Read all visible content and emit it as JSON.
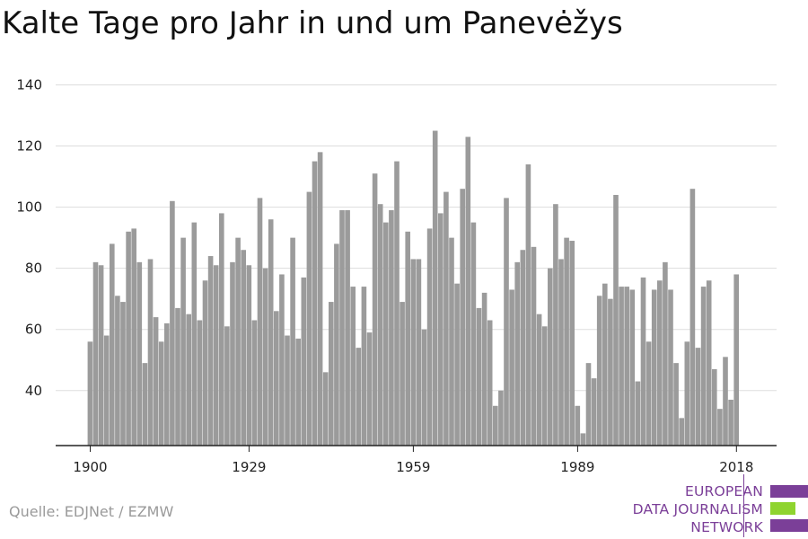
{
  "header": {
    "title": "Kalte Tage pro Jahr in und um Panevėžys"
  },
  "footer": {
    "source": "Quelle: EDJNet / EZMW"
  },
  "logo": {
    "line1": "EUROPEAN",
    "line2": "DATA JOURNALISM",
    "line3": "NETWORK",
    "colors": {
      "purple": "#7b3f98",
      "green": "#8fd42f"
    }
  },
  "chart_data": {
    "type": "bar",
    "x_start": 1900,
    "x_end": 2018,
    "x_ticks": [
      1900,
      1929,
      1959,
      1989,
      2018
    ],
    "ylim": [
      22,
      140
    ],
    "y_ticks": [
      40,
      60,
      80,
      100,
      120,
      140
    ],
    "bar_color": "#9b9b9b",
    "grid": true,
    "values": [
      56,
      82,
      81,
      58,
      88,
      71,
      69,
      92,
      93,
      82,
      49,
      83,
      64,
      56,
      62,
      102,
      67,
      90,
      65,
      95,
      63,
      76,
      84,
      81,
      98,
      61,
      82,
      90,
      86,
      81,
      63,
      103,
      80,
      96,
      66,
      78,
      58,
      90,
      57,
      77,
      105,
      115,
      118,
      46,
      69,
      88,
      99,
      99,
      74,
      54,
      74,
      59,
      111,
      101,
      95,
      99,
      115,
      69,
      92,
      83,
      83,
      60,
      93,
      125,
      98,
      105,
      90,
      75,
      106,
      123,
      95,
      67,
      72,
      63,
      35,
      40,
      103,
      73,
      82,
      86,
      114,
      87,
      65,
      61,
      80,
      101,
      83,
      90,
      89,
      35,
      26,
      49,
      44,
      71,
      75,
      70,
      104,
      74,
      74,
      73,
      43,
      77,
      56,
      73,
      76,
      82,
      73,
      49,
      31,
      56,
      106,
      54,
      74,
      76,
      47,
      34,
      51,
      37,
      78
    ]
  }
}
